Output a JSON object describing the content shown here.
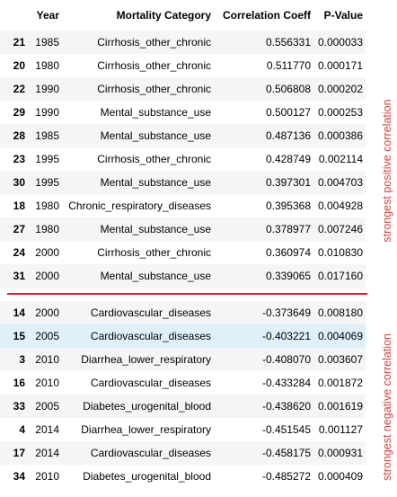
{
  "headers": {
    "year": "Year",
    "category": "Mortality Category",
    "corr": "Correlation Coeff",
    "pvalue": "P-Value"
  },
  "top_rows": [
    {
      "idx": "21",
      "year": "1985",
      "category": "Cirrhosis_other_chronic",
      "corr": "0.556331",
      "p": "0.000033"
    },
    {
      "idx": "20",
      "year": "1980",
      "category": "Cirrhosis_other_chronic",
      "corr": "0.511770",
      "p": "0.000171"
    },
    {
      "idx": "22",
      "year": "1990",
      "category": "Cirrhosis_other_chronic",
      "corr": "0.506808",
      "p": "0.000202"
    },
    {
      "idx": "29",
      "year": "1990",
      "category": "Mental_substance_use",
      "corr": "0.500127",
      "p": "0.000253"
    },
    {
      "idx": "28",
      "year": "1985",
      "category": "Mental_substance_use",
      "corr": "0.487136",
      "p": "0.000386"
    },
    {
      "idx": "23",
      "year": "1995",
      "category": "Cirrhosis_other_chronic",
      "corr": "0.428749",
      "p": "0.002114"
    },
    {
      "idx": "30",
      "year": "1995",
      "category": "Mental_substance_use",
      "corr": "0.397301",
      "p": "0.004703"
    },
    {
      "idx": "18",
      "year": "1980",
      "category": "Chronic_respiratory_diseases",
      "corr": "0.395368",
      "p": "0.004928"
    },
    {
      "idx": "27",
      "year": "1980",
      "category": "Mental_substance_use",
      "corr": "0.378977",
      "p": "0.007246"
    },
    {
      "idx": "24",
      "year": "2000",
      "category": "Cirrhosis_other_chronic",
      "corr": "0.360974",
      "p": "0.010830"
    },
    {
      "idx": "31",
      "year": "2000",
      "category": "Mental_substance_use",
      "corr": "0.339065",
      "p": "0.017160"
    }
  ],
  "bottom_rows": [
    {
      "idx": "14",
      "year": "2000",
      "category": "Cardiovascular_diseases",
      "corr": "-0.373649",
      "p": "0.008180"
    },
    {
      "idx": "15",
      "year": "2005",
      "category": "Cardiovascular_diseases",
      "corr": "-0.403221",
      "p": "0.004069"
    },
    {
      "idx": "3",
      "year": "2010",
      "category": "Diarrhea_lower_respiratory",
      "corr": "-0.408070",
      "p": "0.003607"
    },
    {
      "idx": "16",
      "year": "2010",
      "category": "Cardiovascular_diseases",
      "corr": "-0.433284",
      "p": "0.001872"
    },
    {
      "idx": "33",
      "year": "2005",
      "category": "Diabetes_urogenital_blood",
      "corr": "-0.438620",
      "p": "0.001619"
    },
    {
      "idx": "4",
      "year": "2014",
      "category": "Diarrhea_lower_respiratory",
      "corr": "-0.451545",
      "p": "0.001127"
    },
    {
      "idx": "17",
      "year": "2014",
      "category": "Cardiovascular_diseases",
      "corr": "-0.458175",
      "p": "0.000931"
    },
    {
      "idx": "34",
      "year": "2010",
      "category": "Diabetes_urogenital_blood",
      "corr": "-0.485272",
      "p": "0.000409"
    }
  ],
  "annotations": {
    "positive": "strongest positive correlation",
    "negative": "strongest negative correlation",
    "color": "#e03a3a"
  }
}
